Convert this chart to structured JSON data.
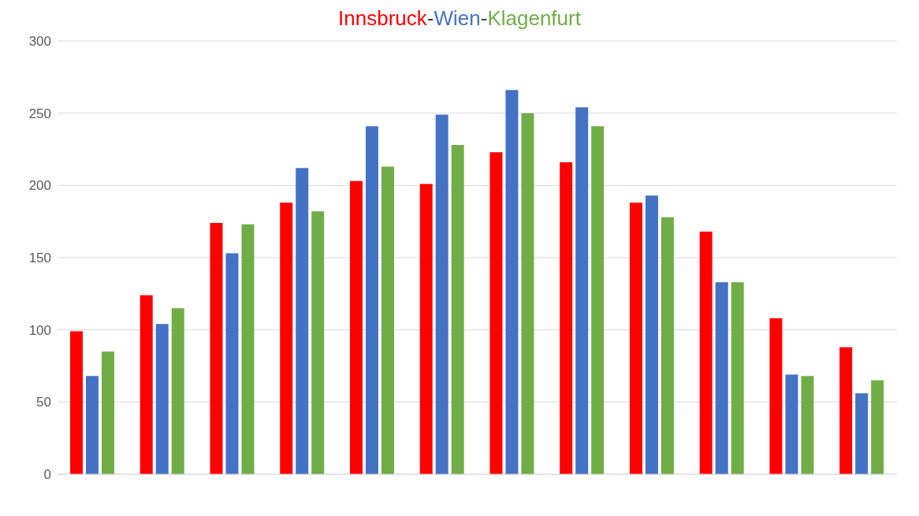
{
  "chart_data": {
    "type": "bar",
    "title": "Innsbruck-Wien-Klagenfurt",
    "categories": [
      null,
      null,
      null,
      null,
      null,
      null,
      null,
      null,
      null,
      null,
      null,
      null
    ],
    "series": [
      {
        "color": "#ff0000",
        "values": [
          99,
          124,
          174,
          188,
          203,
          201,
          223,
          216,
          188,
          168,
          108,
          88
        ]
      },
      {
        "color": "#4472c4",
        "values": [
          68,
          104,
          153,
          212,
          241,
          249,
          266,
          254,
          193,
          133,
          69,
          56
        ]
      },
      {
        "color": "#70ad47",
        "values": [
          85,
          115,
          173,
          182,
          213,
          228,
          250,
          241,
          178,
          133,
          68,
          65
        ]
      }
    ],
    "ylim": [
      0,
      300
    ],
    "yticks": [
      0,
      50,
      100,
      150,
      200,
      250,
      300
    ],
    "grid": "y"
  }
}
